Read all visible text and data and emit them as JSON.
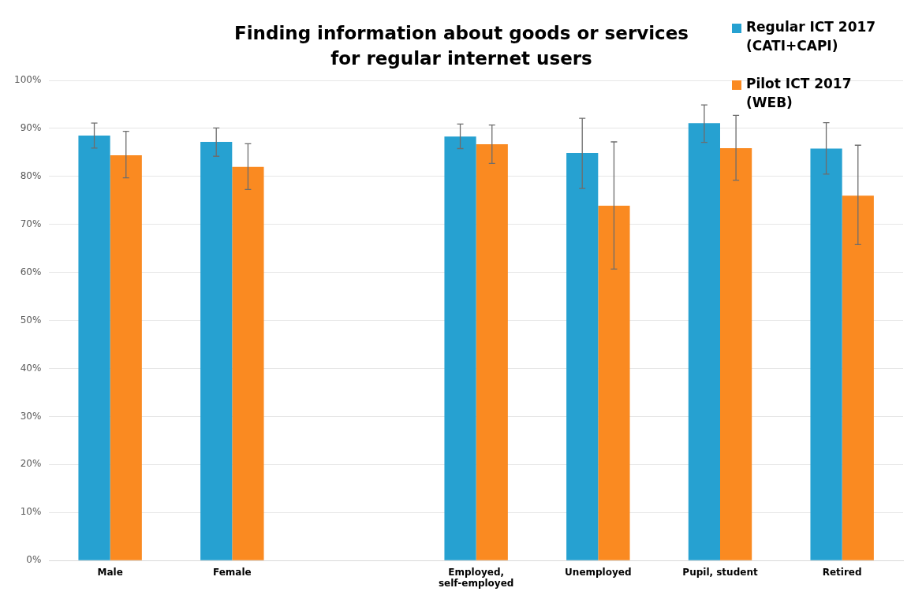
{
  "chart_data": {
    "type": "bar",
    "title": "Finding information about goods or services\nfor regular internet users",
    "categories": [
      "Male",
      "Female",
      null,
      "Employed, self-employed",
      "Unemployed",
      "Pupil, student",
      "Retired"
    ],
    "series": [
      {
        "name": "Regular ICT 2017 (CATI+CAPI)",
        "color": "#26a1d1",
        "values": [
          88.5,
          87.2,
          null,
          88.3,
          84.9,
          91.1,
          85.8
        ],
        "errors": [
          [
            85.9,
            91.1
          ],
          [
            84.2,
            90.1
          ],
          null,
          [
            85.8,
            90.9
          ],
          [
            77.5,
            92.1
          ],
          [
            87.1,
            94.9
          ],
          [
            80.5,
            91.2
          ]
        ]
      },
      {
        "name": "Pilot ICT 2017 (WEB)",
        "color": "#fa8a21",
        "values": [
          84.4,
          82.0,
          null,
          86.7,
          73.9,
          85.9,
          76.0
        ],
        "errors": [
          [
            79.7,
            89.4
          ],
          [
            77.3,
            86.8
          ],
          null,
          [
            82.7,
            90.7
          ],
          [
            60.7,
            87.2
          ],
          [
            79.2,
            92.7
          ],
          [
            65.8,
            86.5
          ]
        ]
      }
    ],
    "ylim": [
      0,
      100
    ],
    "yticks": [
      {
        "value": 0,
        "label": "0%"
      },
      {
        "value": 10,
        "label": "10%"
      },
      {
        "value": 20,
        "label": "20%"
      },
      {
        "value": 30,
        "label": "30%"
      },
      {
        "value": 40,
        "label": "40%"
      },
      {
        "value": 50,
        "label": "50%"
      },
      {
        "value": 60,
        "label": "60%"
      },
      {
        "value": 70,
        "label": "70%"
      },
      {
        "value": 80,
        "label": "80%"
      },
      {
        "value": 90,
        "label": "90%"
      },
      {
        "value": 100,
        "label": "100%"
      }
    ],
    "grid": "y",
    "legend": "top right"
  }
}
